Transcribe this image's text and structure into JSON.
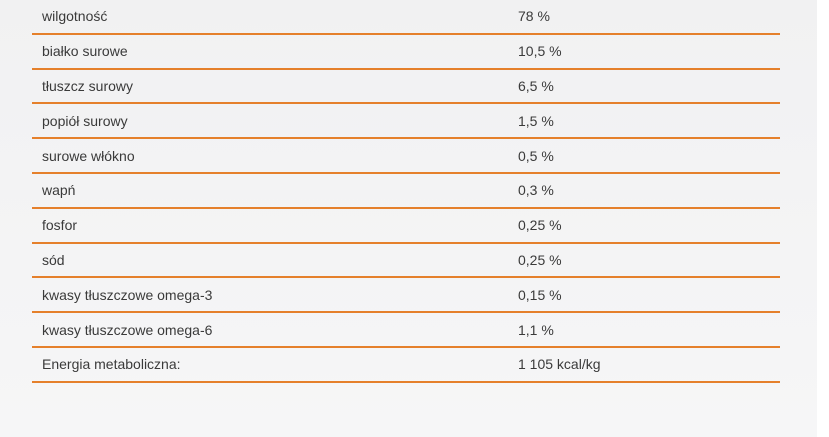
{
  "table": {
    "rows": [
      {
        "label": "wilgotność",
        "value": "78 %"
      },
      {
        "label": "białko surowe",
        "value": "10,5 %"
      },
      {
        "label": "tłuszcz surowy",
        "value": "6,5 %"
      },
      {
        "label": "popiół surowy",
        "value": "1,5 %"
      },
      {
        "label": "surowe włókno",
        "value": "0,5 %"
      },
      {
        "label": "wapń",
        "value": "0,3 %"
      },
      {
        "label": "fosfor",
        "value": "0,25 %"
      },
      {
        "label": "sód",
        "value": "0,25 %"
      },
      {
        "label": "kwasy tłuszczowe omega-3",
        "value": "0,15 %"
      },
      {
        "label": "kwasy tłuszczowe omega-6",
        "value": "1,1 %"
      },
      {
        "label": "Energia metaboliczna:",
        "value": "1 105 kcal/kg"
      }
    ]
  },
  "colors": {
    "divider": "#e5802b",
    "text": "#3a3a3a",
    "content_bg_top": "#f1f1f2",
    "content_bg_bottom": "#f6f6f7",
    "page_bg": "#ffffff"
  }
}
